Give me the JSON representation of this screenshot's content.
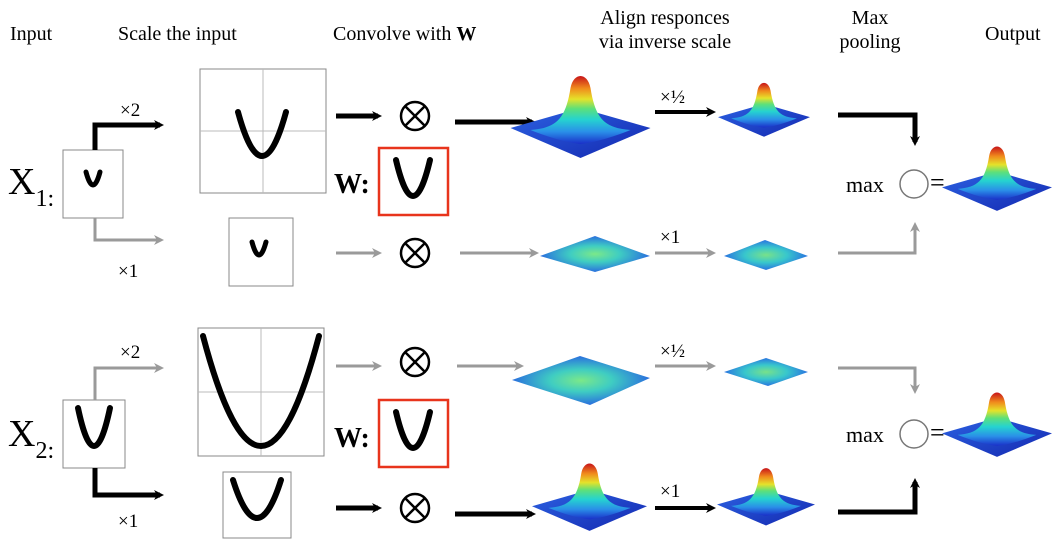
{
  "headers": {
    "input": "Input",
    "scale": "Scale the input",
    "convolve_prefix": "Convolve with ",
    "convolve_bold": "W",
    "align_line1": "Align responces",
    "align_line2": "via inverse scale",
    "max_line1": "Max",
    "max_line2": "pooling",
    "output": "Output"
  },
  "rows": [
    {
      "input_symbol": "X",
      "input_subscript": "1:",
      "scale_top": "×2",
      "scale_bottom": "×1",
      "inverse_top": "×½",
      "inverse_bottom": "×1",
      "weight_label": "W:",
      "max_label": "max",
      "equals": "=",
      "dominant_branch": "top"
    },
    {
      "input_symbol": "X",
      "input_subscript": "2:",
      "scale_top": "×2",
      "scale_bottom": "×1",
      "inverse_top": "×½",
      "inverse_bottom": "×1",
      "weight_label": "W:",
      "max_label": "max",
      "equals": "=",
      "dominant_branch": "bottom"
    }
  ],
  "colors": {
    "strong_arrow": "#000000",
    "weak_arrow": "#9a9a9a",
    "filter_border": "#e8341c",
    "box_border": "#888888"
  },
  "icons": [
    "convolution-otimes-icon",
    "gaussian-peak-icon",
    "flat-response-icon",
    "parabola-curve-icon",
    "max-circle-icon"
  ]
}
